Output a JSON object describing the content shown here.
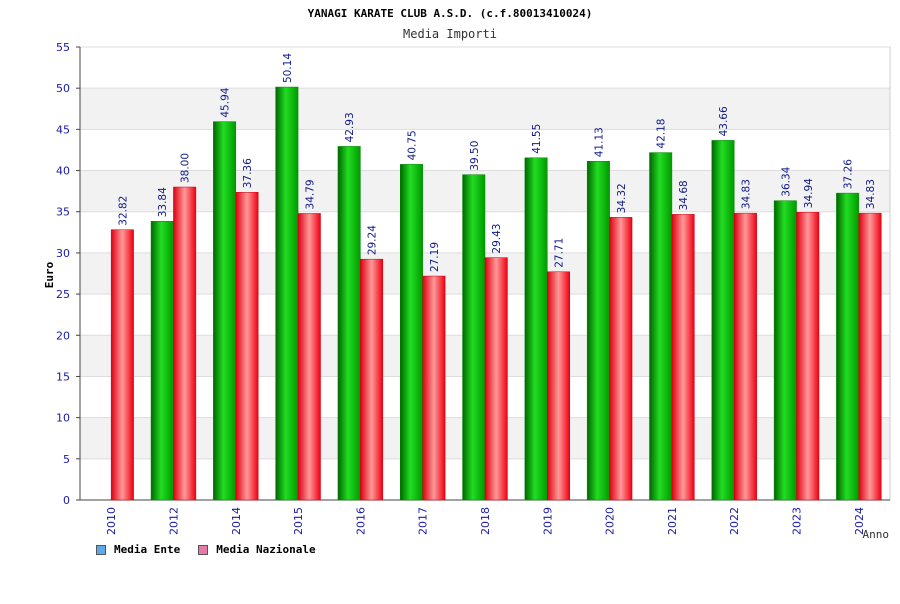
{
  "chart_data": {
    "type": "bar",
    "title": "YANAGI KARATE CLUB A.S.D. (c.f.80013410024)",
    "subtitle": "Media Importi",
    "ylabel": "Euro",
    "xlabel": "Anno",
    "ylim": [
      0,
      55
    ],
    "ytick_step": 5,
    "grid": true,
    "legend_position": "bottom-left",
    "categories": [
      "2010",
      "2012",
      "2014",
      "2015",
      "2016",
      "2017",
      "2018",
      "2019",
      "2020",
      "2021",
      "2022",
      "2023",
      "2024"
    ],
    "series": [
      {
        "name": "Media Ente",
        "color": "#00bb00",
        "legend_color": "#5fa8e8",
        "values": [
          null,
          33.84,
          45.94,
          50.14,
          42.93,
          40.75,
          39.5,
          41.55,
          41.13,
          42.18,
          43.66,
          36.34,
          37.26
        ],
        "labels": [
          "",
          "33.84",
          "45.94",
          "50.14",
          "42.93",
          "40.75",
          "39.50",
          "41.55",
          "41.13",
          "42.18",
          "43.66",
          "36.34",
          "37.26"
        ]
      },
      {
        "name": "Media Nazionale",
        "color": "#ee1122",
        "legend_color": "#e87aa8",
        "values": [
          32.82,
          38.0,
          37.36,
          34.79,
          29.24,
          27.19,
          29.43,
          27.71,
          34.32,
          34.68,
          34.83,
          34.94,
          34.83
        ],
        "labels": [
          "32.82",
          "38.00",
          "37.36",
          "34.79",
          "29.24",
          "27.19",
          "29.43",
          "27.71",
          "34.32",
          "34.68",
          "34.83",
          "34.94",
          "34.83"
        ]
      }
    ]
  }
}
